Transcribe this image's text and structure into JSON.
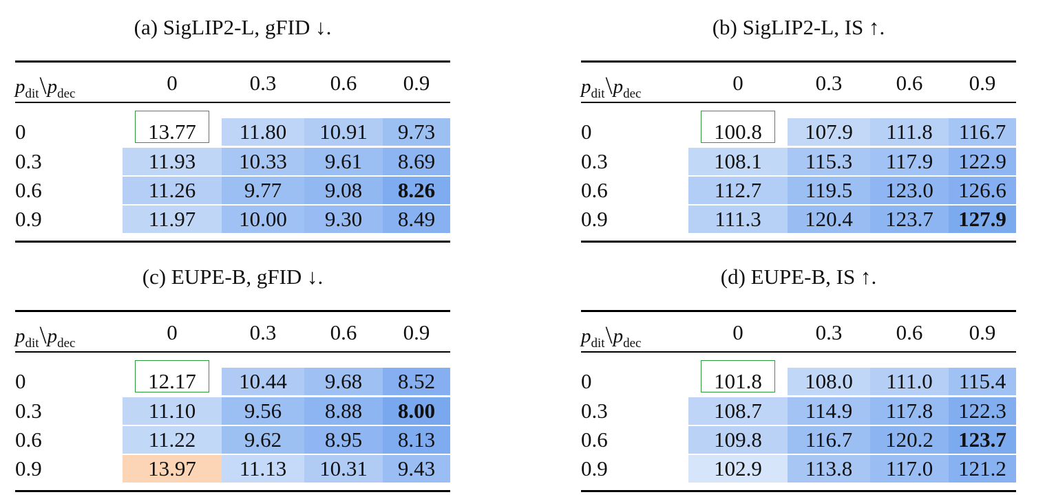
{
  "columns": [
    "0",
    "0.3",
    "0.6",
    "0.9"
  ],
  "rows": [
    "0",
    "0.3",
    "0.6",
    "0.9"
  ],
  "corner_label": {
    "p1": "p",
    "s1": "dit",
    "p2": "p",
    "s2": "dec"
  },
  "colors": {
    "baseline_border": "#2e9a3a",
    "worse_than_baseline": "#fbd5b5",
    "better_scale_light": "#dbe8fa",
    "better_scale_dark": "#6fa1ee"
  },
  "panels": [
    {
      "id": "a",
      "caption": "(a) SigLIP2-L, gFID ↓.",
      "values": [
        [
          "13.77",
          "11.80",
          "10.91",
          "9.73"
        ],
        [
          "11.93",
          "10.33",
          "9.61",
          "8.69"
        ],
        [
          "11.26",
          "9.77",
          "9.08",
          "8.26"
        ],
        [
          "11.97",
          "10.00",
          "9.30",
          "8.49"
        ]
      ],
      "shade": [
        [
          0,
          0.27,
          0.4,
          0.57
        ],
        [
          0.26,
          0.48,
          0.59,
          0.72
        ],
        [
          0.36,
          0.58,
          0.68,
          0.85
        ],
        [
          0.25,
          0.55,
          0.63,
          0.77
        ]
      ],
      "bold": [
        2,
        3
      ]
    },
    {
      "id": "b",
      "caption": "(b) SigLIP2-L, IS ↑.",
      "values": [
        [
          "100.8",
          "107.9",
          "111.8",
          "116.7"
        ],
        [
          "108.1",
          "115.3",
          "117.9",
          "122.9"
        ],
        [
          "112.7",
          "119.5",
          "123.0",
          "126.6"
        ],
        [
          "111.3",
          "120.4",
          "123.7",
          "127.9"
        ]
      ],
      "shade": [
        [
          0,
          0.22,
          0.34,
          0.5
        ],
        [
          0.23,
          0.46,
          0.54,
          0.7
        ],
        [
          0.37,
          0.58,
          0.7,
          0.8
        ],
        [
          0.33,
          0.61,
          0.72,
          0.88
        ]
      ],
      "bold": [
        3,
        3
      ]
    },
    {
      "id": "c",
      "caption": "(c) EUPE-B, gFID ↓.",
      "values": [
        [
          "12.17",
          "10.44",
          "9.68",
          "8.52"
        ],
        [
          "11.10",
          "9.56",
          "8.88",
          "8.00"
        ],
        [
          "11.22",
          "9.62",
          "8.95",
          "8.13"
        ],
        [
          "13.97",
          "11.13",
          "10.31",
          "9.43"
        ]
      ],
      "shade": [
        [
          0,
          0.42,
          0.56,
          0.8
        ],
        [
          0.25,
          0.58,
          0.72,
          0.9
        ],
        [
          0.23,
          0.57,
          0.7,
          0.85
        ],
        [
          -1,
          0.2,
          0.4,
          0.6
        ]
      ],
      "bold": [
        1,
        3
      ]
    },
    {
      "id": "d",
      "caption": "(d) EUPE-B, IS ↑.",
      "values": [
        [
          "101.8",
          "108.0",
          "111.0",
          "115.4"
        ],
        [
          "108.7",
          "114.9",
          "117.8",
          "122.3"
        ],
        [
          "109.8",
          "116.7",
          "120.2",
          "123.7"
        ],
        [
          "102.9",
          "113.8",
          "117.0",
          "121.2"
        ]
      ],
      "shade": [
        [
          0,
          0.24,
          0.36,
          0.55
        ],
        [
          0.27,
          0.52,
          0.64,
          0.82
        ],
        [
          0.31,
          0.59,
          0.73,
          0.88
        ],
        [
          0.04,
          0.48,
          0.6,
          0.78
        ]
      ],
      "bold": [
        2,
        3
      ]
    }
  ]
}
